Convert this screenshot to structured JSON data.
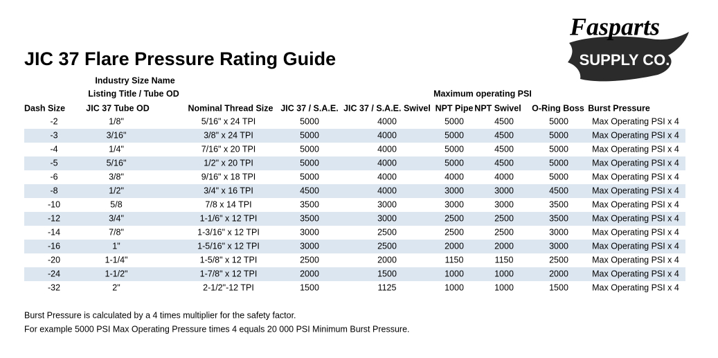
{
  "header": {
    "title": "JIC 37 Flare Pressure Rating Guide"
  },
  "logo": {
    "line1": "Fasparts",
    "line2": "SUPPLY CO."
  },
  "table": {
    "group_labels": {
      "size_line1": "Industry Size Name",
      "size_line2": "Listing Title / Tube OD",
      "pressure": "Maximum operating PSI"
    },
    "columns": [
      "Dash Size",
      "JIC 37 Tube OD",
      "Nominal Thread Size",
      "JIC 37 / S.A.E.",
      "JIC 37 / S.A.E. Swivel",
      "NPT Pipe",
      "NPT Swivel",
      "O-Ring Boss",
      "Burst Pressure"
    ],
    "rows": [
      [
        "-2",
        "1/8\"",
        "5/16\" x 24 TPI",
        "5000",
        "4000",
        "5000",
        "4500",
        "5000",
        "Max Operating PSI x 4"
      ],
      [
        "-3",
        "3/16\"",
        "3/8\" x 24 TPI",
        "5000",
        "4000",
        "5000",
        "4500",
        "5000",
        "Max Operating PSI x 4"
      ],
      [
        "-4",
        "1/4\"",
        "7/16\" x 20 TPI",
        "5000",
        "4000",
        "5000",
        "4500",
        "5000",
        "Max Operating PSI x 4"
      ],
      [
        "-5",
        "5/16\"",
        "1/2\" x 20 TPI",
        "5000",
        "4000",
        "5000",
        "4500",
        "5000",
        "Max Operating PSI x 4"
      ],
      [
        "-6",
        "3/8\"",
        "9/16\" x 18 TPI",
        "5000",
        "4000",
        "4000",
        "4000",
        "5000",
        "Max Operating PSI x 4"
      ],
      [
        "-8",
        "1/2\"",
        "3/4\" x 16 TPI",
        "4500",
        "4000",
        "3000",
        "3000",
        "4500",
        "Max Operating PSI x 4"
      ],
      [
        "-10",
        "5/8",
        "7/8 x 14 TPI",
        "3500",
        "3000",
        "3000",
        "3000",
        "3500",
        "Max Operating PSI x 4"
      ],
      [
        "-12",
        "3/4\"",
        "1-1/6\" x 12 TPI",
        "3500",
        "3000",
        "2500",
        "2500",
        "3500",
        "Max Operating PSI x 4"
      ],
      [
        "-14",
        "7/8\"",
        "1-3/16\" x 12 TPI",
        "3000",
        "2500",
        "2500",
        "2500",
        "3000",
        "Max Operating PSI x 4"
      ],
      [
        "-16",
        "1\"",
        "1-5/16\" x 12 TPI",
        "3000",
        "2500",
        "2000",
        "2000",
        "3000",
        "Max Operating PSI x 4"
      ],
      [
        "-20",
        "1-1/4\"",
        "1-5/8\" x 12 TPI",
        "2500",
        "2000",
        "1150",
        "1150",
        "2500",
        "Max Operating PSI x 4"
      ],
      [
        "-24",
        "1-1/2\"",
        "1-7/8\" x 12 TPI",
        "2000",
        "1500",
        "1000",
        "1000",
        "2000",
        "Max Operating PSI x 4"
      ],
      [
        "-32",
        "2\"",
        "2-1/2\"-12 TPI",
        "1500",
        "1125",
        "1000",
        "1000",
        "1500",
        "Max Operating PSI x 4"
      ]
    ]
  },
  "notes": [
    "Burst Pressure is calculated by a 4 times multiplier for the safety factor.",
    "For example 5000 PSI Max Operating Pressure times 4 equals 20 000 PSI Minimum Burst Pressure."
  ]
}
